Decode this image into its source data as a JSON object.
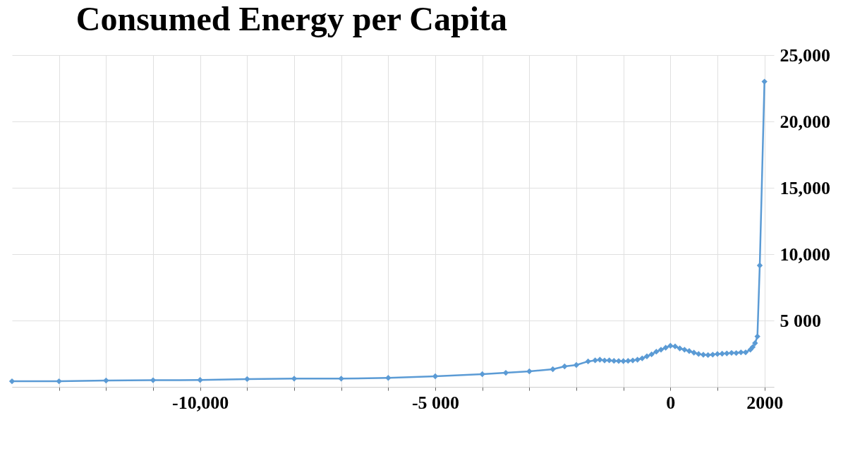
{
  "chart_data": {
    "type": "line",
    "title": "Consumed Energy per Capita",
    "xlim": [
      -14000,
      2200
    ],
    "xticks": [
      {
        "value": -13000,
        "label": null
      },
      {
        "value": -12000,
        "label": null
      },
      {
        "value": -11000,
        "label": null
      },
      {
        "value": -10000,
        "label": "-10,000"
      },
      {
        "value": -9000,
        "label": null
      },
      {
        "value": -8000,
        "label": null
      },
      {
        "value": -7000,
        "label": null
      },
      {
        "value": -6000,
        "label": null
      },
      {
        "value": -5000,
        "label": "-5 000"
      },
      {
        "value": -4000,
        "label": null
      },
      {
        "value": -3000,
        "label": null
      },
      {
        "value": -2000,
        "label": null
      },
      {
        "value": -1000,
        "label": null
      },
      0,
      {
        "value": 1000,
        "label": null
      },
      2000
    ],
    "ylim": [
      0,
      25000
    ],
    "yticks": [
      {
        "value": 0,
        "label": null
      },
      {
        "value": 5000,
        "label": "5 000"
      },
      {
        "value": 10000,
        "label": "10,000"
      },
      {
        "value": 15000,
        "label": "15,000"
      },
      {
        "value": 20000,
        "label": "20,000"
      },
      {
        "value": 25000,
        "label": "25,000"
      }
    ],
    "grid": true,
    "marker": "diamond",
    "line_style": "solid",
    "series": [
      {
        "color": "#5b9bd5",
        "x": [
          -14000,
          -13000,
          -12000,
          -11000,
          -10000,
          -9000,
          -8000,
          -7000,
          -6000,
          -5000,
          -4000,
          -3500,
          -3000,
          -2500,
          -2250,
          -2000,
          -1750,
          -1600,
          -1500,
          -1400,
          -1300,
          -1200,
          -1100,
          -1000,
          -900,
          -800,
          -700,
          -600,
          -500,
          -400,
          -300,
          -200,
          -100,
          0,
          100,
          200,
          300,
          400,
          500,
          600,
          700,
          800,
          900,
          1000,
          1100,
          1200,
          1300,
          1400,
          1500,
          1600,
          1700,
          1750,
          1800,
          1850,
          1900,
          2000
        ],
        "values": [
          420,
          420,
          480,
          500,
          520,
          590,
          620,
          620,
          680,
          800,
          960,
          1060,
          1170,
          1330,
          1540,
          1650,
          1920,
          2000,
          2050,
          1990,
          2000,
          1960,
          1950,
          1940,
          1960,
          1990,
          2050,
          2150,
          2300,
          2450,
          2650,
          2800,
          2950,
          3100,
          3050,
          2900,
          2800,
          2700,
          2580,
          2480,
          2420,
          2400,
          2430,
          2480,
          2500,
          2520,
          2560,
          2550,
          2600,
          2600,
          2800,
          3000,
          3300,
          3800,
          9150,
          23000
        ]
      }
    ]
  }
}
